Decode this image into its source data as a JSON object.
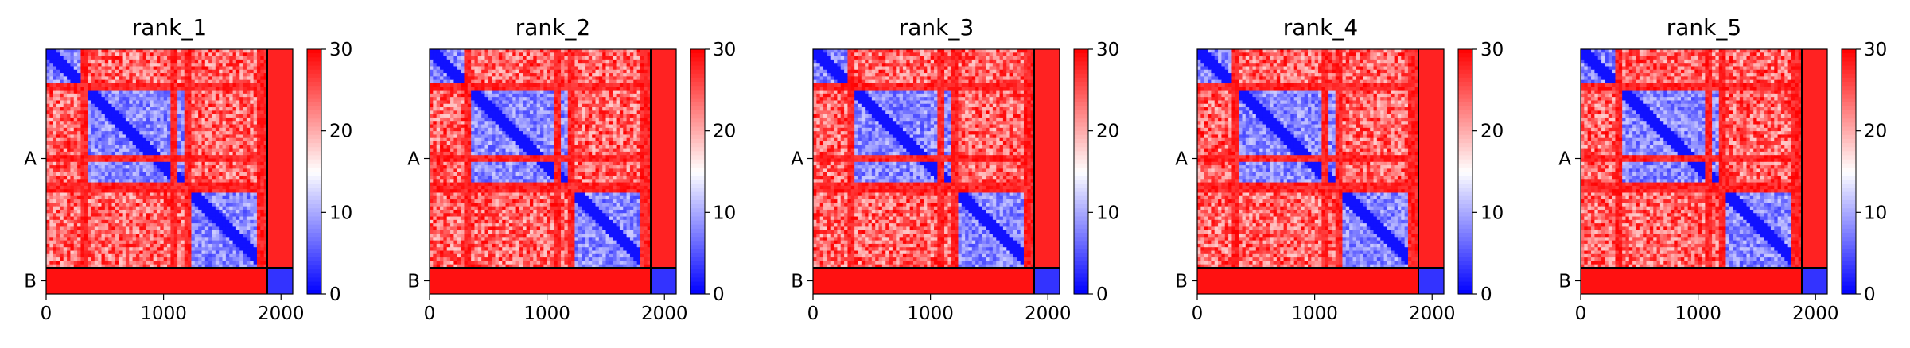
{
  "colors": {
    "low": "#0000ff",
    "mid": "#ffffff",
    "high": "#ff0000",
    "frame": "#000000"
  },
  "chart_data": [
    {
      "type": "heatmap",
      "title": "rank_1",
      "x_ticks": [
        0,
        1000,
        2000
      ],
      "xlim": [
        0,
        2100
      ],
      "y_categories": [
        "A",
        "B"
      ],
      "chain_boundary": 1880,
      "colorbar": {
        "ticks": [
          0,
          10,
          20,
          30
        ],
        "range": [
          0,
          30
        ],
        "colormap": "bwr"
      },
      "b_rows_extent": 1000
    },
    {
      "type": "heatmap",
      "title": "rank_2",
      "x_ticks": [
        0,
        1000,
        2000
      ],
      "xlim": [
        0,
        2100
      ],
      "y_categories": [
        "A",
        "B"
      ],
      "chain_boundary": 1880,
      "colorbar": {
        "ticks": [
          0,
          10,
          20,
          30
        ],
        "range": [
          0,
          30
        ],
        "colormap": "bwr"
      },
      "b_rows_extent": 1000
    },
    {
      "type": "heatmap",
      "title": "rank_3",
      "x_ticks": [
        0,
        1000,
        2000
      ],
      "xlim": [
        0,
        2100
      ],
      "y_categories": [
        "A",
        "B"
      ],
      "chain_boundary": 1880,
      "colorbar": {
        "ticks": [
          0,
          10,
          20,
          30
        ],
        "range": [
          0,
          30
        ],
        "colormap": "bwr"
      },
      "b_rows_extent": 1000
    },
    {
      "type": "heatmap",
      "title": "rank_4",
      "x_ticks": [
        0,
        1000,
        2000
      ],
      "xlim": [
        0,
        2100
      ],
      "y_categories": [
        "A",
        "B"
      ],
      "chain_boundary": 1880,
      "colorbar": {
        "ticks": [
          0,
          10,
          20,
          30
        ],
        "range": [
          0,
          30
        ],
        "colormap": "bwr"
      },
      "b_rows_extent": 1000
    },
    {
      "type": "heatmap",
      "title": "rank_5",
      "x_ticks": [
        0,
        1000,
        2000
      ],
      "xlim": [
        0,
        2100
      ],
      "y_categories": [
        "A",
        "B"
      ],
      "chain_boundary": 1880,
      "colorbar": {
        "ticks": [
          0,
          10,
          20,
          30
        ],
        "range": [
          0,
          30
        ],
        "colormap": "bwr"
      },
      "b_rows_extent": 1000
    }
  ]
}
